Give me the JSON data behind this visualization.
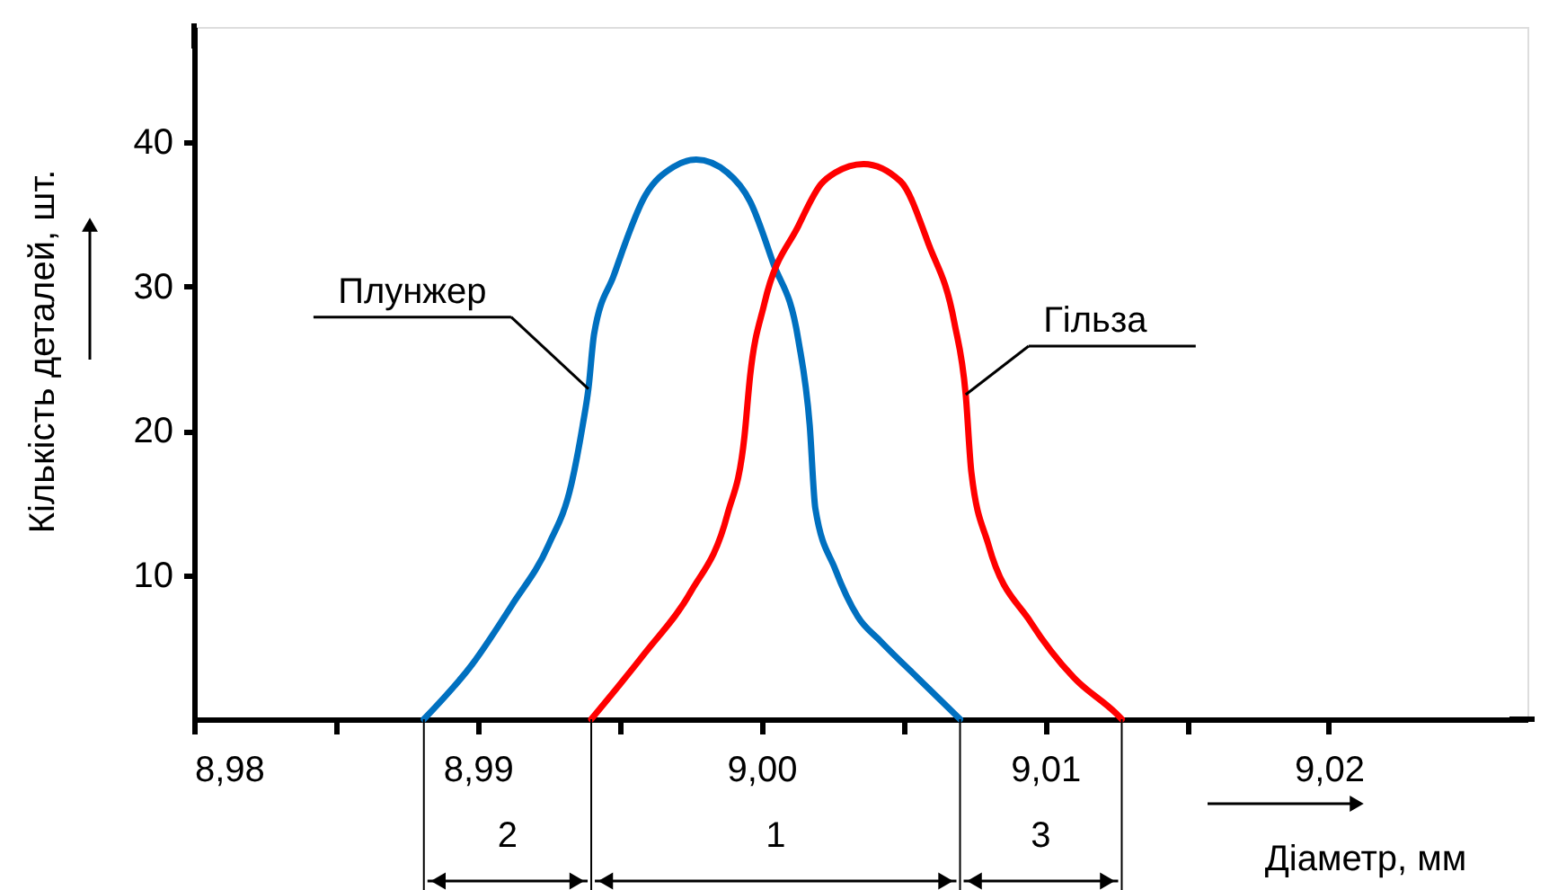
{
  "chart_data": {
    "type": "line",
    "xlabel": "Діаметр, мм",
    "ylabel": "Кількість деталей, шт.",
    "xlim": [
      8.98,
      9.027
    ],
    "ylim": [
      0,
      48
    ],
    "xticks": [
      {
        "value": 8.98,
        "label": "8,98"
      },
      {
        "value": 8.985,
        "label": null
      },
      {
        "value": 8.99,
        "label": "8,99"
      },
      {
        "value": 8.995,
        "label": null
      },
      {
        "value": 9.0,
        "label": "9,00"
      },
      {
        "value": 9.005,
        "label": null
      },
      {
        "value": 9.01,
        "label": "9,01"
      },
      {
        "value": 9.015,
        "label": null
      },
      {
        "value": 9.02,
        "label": "9,02"
      }
    ],
    "yticks": [
      10,
      20,
      30,
      40
    ],
    "line_style": "solid",
    "series": [
      {
        "name": "Плунжер",
        "color": "#0070c0",
        "x": [
          8.9881,
          8.9898,
          8.9912,
          8.9925,
          8.9933,
          8.9937,
          8.9939,
          8.9941,
          8.9948,
          8.9959,
          8.9969,
          8.9977,
          8.9988,
          8.9996,
          9.0004,
          9.0013,
          9.0017,
          9.0019,
          9.0026,
          9.0034,
          9.0042,
          9.0057,
          9.007
        ],
        "values": [
          0,
          3.8,
          7.9,
          12.1,
          16.3,
          20.4,
          22.9,
          26.7,
          30.8,
          36.3,
          38.3,
          38.8,
          37.9,
          35.9,
          31.7,
          26.3,
          20.4,
          14.6,
          10.4,
          7.1,
          5.4,
          2.5,
          0
        ]
      },
      {
        "name": "Гільза",
        "color": "#ff0000",
        "x": [
          8.994,
          8.9959,
          8.9975,
          8.9988,
          8.9994,
          8.9996,
          9.0001,
          9.0013,
          9.0021,
          9.0026,
          9.0036,
          9.0049,
          9.0059,
          9.0068,
          9.0072,
          9.0074,
          9.008,
          9.0095,
          9.011,
          9.0125,
          9.0127
        ],
        "values": [
          0,
          4.6,
          8.8,
          14.2,
          19.6,
          23.8,
          28.8,
          34.2,
          37.1,
          37.9,
          38.5,
          37.3,
          32.9,
          27.5,
          22.5,
          17.1,
          12.1,
          6.7,
          2.9,
          0.4,
          0
        ]
      }
    ],
    "annotations": [
      "2",
      "1",
      "3"
    ]
  }
}
